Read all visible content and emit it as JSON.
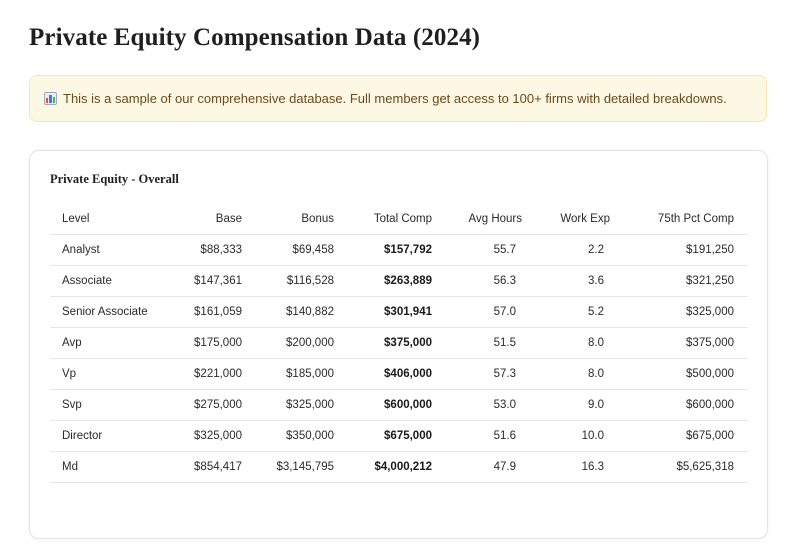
{
  "page": {
    "title": "Private Equity Compensation Data (2024)"
  },
  "notice": {
    "icon": "bar-chart-icon",
    "text": "This is a sample of our comprehensive database. Full members get access to 100+ firms with detailed breakdowns.",
    "colors": {
      "background": "#fdf8e3",
      "border": "#f3e7ad",
      "text": "#6b4a1d"
    }
  },
  "table": {
    "title": "Private Equity - Overall",
    "columns": [
      "Level",
      "Base",
      "Bonus",
      "Total Comp",
      "Avg Hours",
      "Work Exp",
      "75th Pct Comp"
    ],
    "rows": [
      [
        "Analyst",
        "$88,333",
        "$69,458",
        "$157,792",
        "55.7",
        "2.2",
        "$191,250"
      ],
      [
        "Associate",
        "$147,361",
        "$116,528",
        "$263,889",
        "56.3",
        "3.6",
        "$321,250"
      ],
      [
        "Senior Associate",
        "$161,059",
        "$140,882",
        "$301,941",
        "57.0",
        "5.2",
        "$325,000"
      ],
      [
        "Avp",
        "$175,000",
        "$200,000",
        "$375,000",
        "51.5",
        "8.0",
        "$375,000"
      ],
      [
        "Vp",
        "$221,000",
        "$185,000",
        "$406,000",
        "57.3",
        "8.0",
        "$500,000"
      ],
      [
        "Svp",
        "$275,000",
        "$325,000",
        "$600,000",
        "53.0",
        "9.0",
        "$600,000"
      ],
      [
        "Director",
        "$325,000",
        "$350,000",
        "$675,000",
        "51.6",
        "10.0",
        "$675,000"
      ],
      [
        "Md",
        "$854,417",
        "$3,145,795",
        "$4,000,212",
        "47.9",
        "16.3",
        "$5,625,318"
      ]
    ]
  }
}
